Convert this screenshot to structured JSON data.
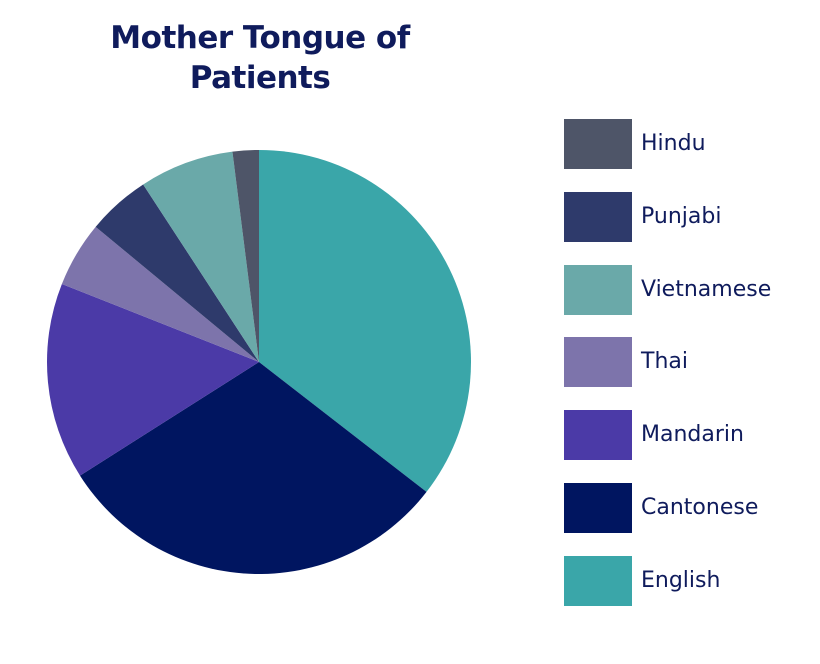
{
  "chart_data": {
    "type": "pie",
    "title": "Mother Tongue of Patients",
    "legend_position": "right",
    "series": [
      {
        "name": "English",
        "value": 35.5,
        "color": "#3aa6a9"
      },
      {
        "name": "Cantonese",
        "value": 30.5,
        "color": "#001560"
      },
      {
        "name": "Mandarin",
        "value": 15,
        "color": "#4b3aa7"
      },
      {
        "name": "Thai",
        "value": 5,
        "color": "#7d74ab"
      },
      {
        "name": "Punjabi",
        "value": 4.8,
        "color": "#2e3a6b"
      },
      {
        "name": "Vietnamese",
        "value": 7.2,
        "color": "#6aa9a9"
      },
      {
        "name": "Hindu",
        "value": 2,
        "color": "#4e5568"
      }
    ],
    "legend_order": [
      "Hindu",
      "Punjabi",
      "Vietnamese",
      "Thai",
      "Mandarin",
      "Cantonese",
      "English"
    ]
  }
}
